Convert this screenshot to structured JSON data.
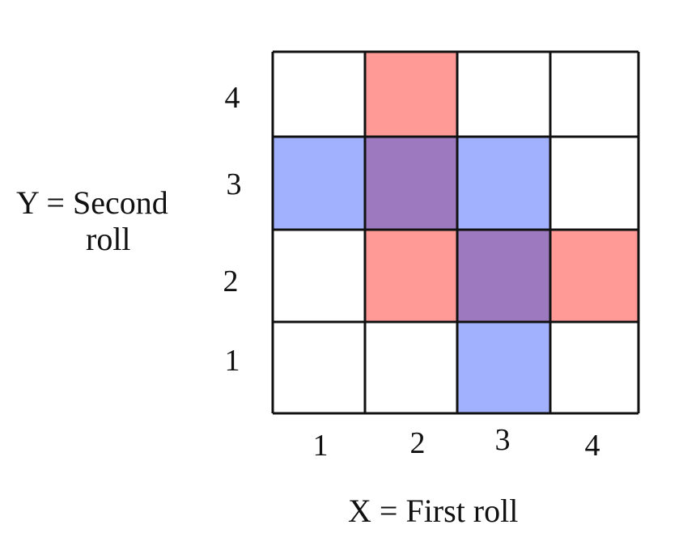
{
  "grid": {
    "columns": [
      "1",
      "2",
      "3",
      "4"
    ],
    "rows": [
      "1",
      "2",
      "3",
      "4"
    ],
    "cells": [
      {
        "x": 2,
        "y": 4,
        "event": "red"
      },
      {
        "x": 1,
        "y": 3,
        "event": "blue"
      },
      {
        "x": 2,
        "y": 3,
        "event": "both"
      },
      {
        "x": 3,
        "y": 3,
        "event": "blue"
      },
      {
        "x": 2,
        "y": 2,
        "event": "red"
      },
      {
        "x": 3,
        "y": 2,
        "event": "both"
      },
      {
        "x": 4,
        "y": 2,
        "event": "red"
      },
      {
        "x": 3,
        "y": 1,
        "event": "blue"
      }
    ]
  },
  "colors": {
    "red": "#ff9a97",
    "blue": "#a1b1fd",
    "both": "#9d79c0",
    "line": "#111111"
  },
  "labels": {
    "x_axis": "X = First roll",
    "y_axis_line1": "Y = Second",
    "y_axis_line2": "roll"
  }
}
